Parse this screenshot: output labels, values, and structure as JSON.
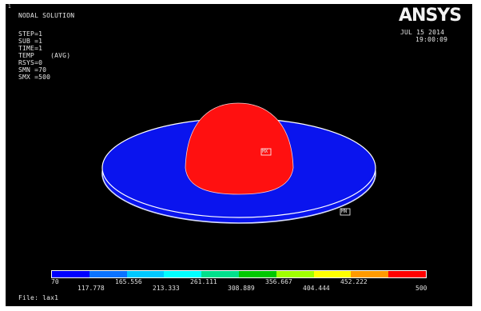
{
  "window": {
    "corner_index": "1",
    "logo": "ANSYS",
    "date": "JUL 15 2014",
    "time": "19:00:09"
  },
  "solution_info": {
    "title": "NODAL SOLUTION",
    "step": "STEP=1",
    "sub": "SUB =1",
    "time": "TIME=1",
    "temp": "TEMP    (AVG)",
    "rsys": "RSYS=0",
    "smn": "SMN =70",
    "smx": "SMX =500"
  },
  "model": {
    "max_marker": "MX",
    "min_marker": "MN",
    "colors": {
      "plate": "#0a14ee",
      "hot_zone": "#ff1010",
      "edge": "#cfd6ff"
    }
  },
  "legend": {
    "colors": [
      "#0000ff",
      "#0a73ff",
      "#00c8ff",
      "#00ffff",
      "#00e08c",
      "#00c800",
      "#a0ff00",
      "#ffff00",
      "#ff9a00",
      "#ff0000"
    ],
    "top_labels": [
      "70",
      "165.556",
      "261.111",
      "356.667",
      "452.222"
    ],
    "bottom_labels": [
      "117.778",
      "213.333",
      "308.889",
      "404.444",
      "500"
    ]
  },
  "footer": {
    "file": "File: lax1"
  }
}
